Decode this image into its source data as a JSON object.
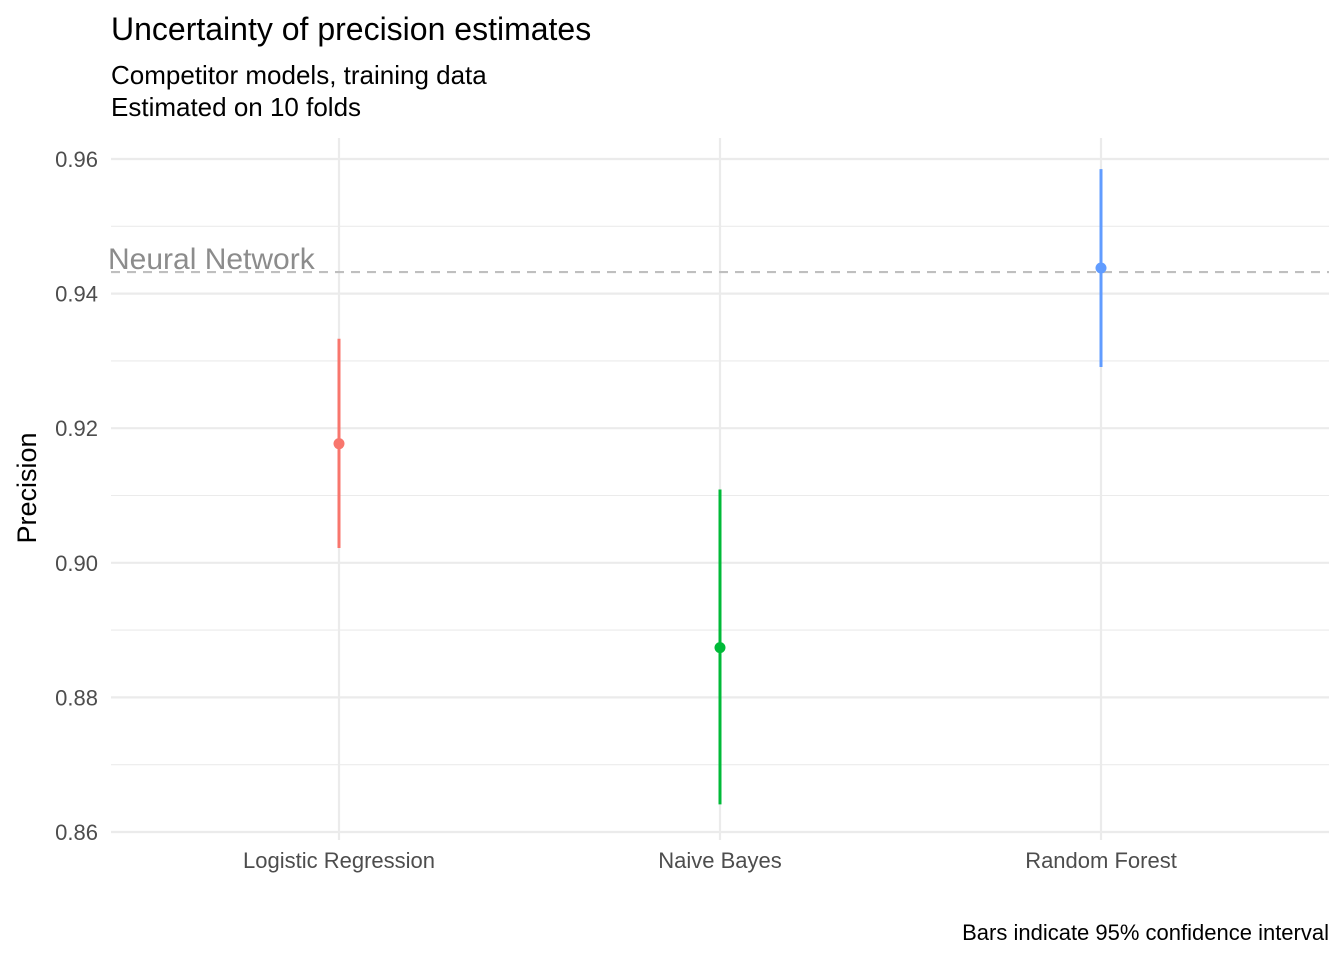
{
  "chart_data": {
    "type": "scatter",
    "title": "Uncertainty of precision estimates",
    "subtitle_lines": [
      "Competitor models, training data",
      "Estimated on 10 folds"
    ],
    "caption": "Bars indicate 95% confidence interval",
    "xlabel": "",
    "ylabel": "Precision",
    "ylim": [
      0.86,
      0.964
    ],
    "yticks": [
      0.86,
      0.88,
      0.9,
      0.92,
      0.94,
      0.96
    ],
    "ytick_labels": [
      "0.86",
      "0.88",
      "0.90",
      "0.92",
      "0.94",
      "0.96"
    ],
    "categories": [
      "Logistic Regression",
      "Naive Bayes",
      "Random Forest"
    ],
    "points": [
      {
        "category": "Logistic Regression",
        "estimate": 0.9177,
        "lower": 0.9022,
        "upper": 0.9333,
        "color": "#F8766D"
      },
      {
        "category": "Naive Bayes",
        "estimate": 0.8874,
        "lower": 0.8641,
        "upper": 0.9109,
        "color": "#00BA38"
      },
      {
        "category": "Random Forest",
        "estimate": 0.9438,
        "lower": 0.9291,
        "upper": 0.9585,
        "color": "#619CFF"
      }
    ],
    "reference_line": {
      "label": "Neural Network",
      "value": 0.9432,
      "style": "dashed",
      "color": "#bfbfbf"
    },
    "grid": true,
    "legend": "none"
  }
}
